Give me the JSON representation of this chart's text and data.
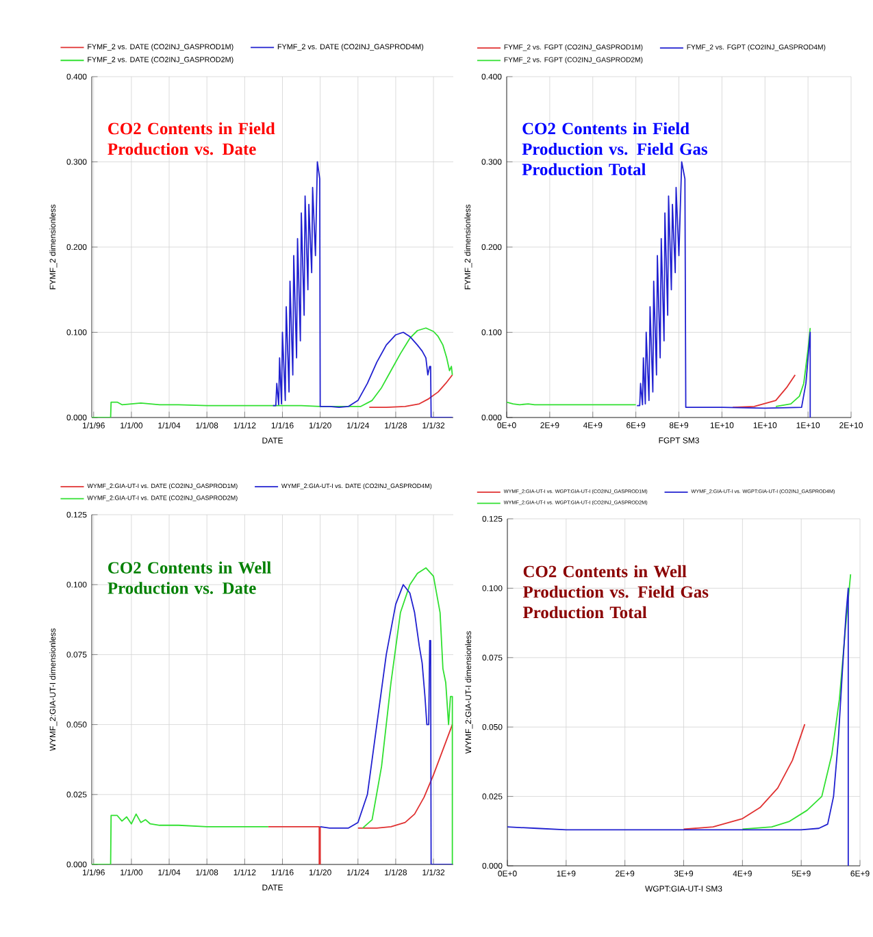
{
  "chart_data": [
    {
      "type": "line",
      "title": "CO2 Contents in Field Production vs. Date",
      "xlabel": "DATE",
      "ylabel": "FYMF_2   dimensionless",
      "legend": "top",
      "grid": true,
      "marker": "none",
      "line_style": "solid",
      "xlim": [
        "1995-10-20",
        "2034-02-06"
      ],
      "ylim": [
        0,
        0.4
      ],
      "xticks": [
        {
          "value": "1996-01-01",
          "label": "1/1/96"
        },
        {
          "value": "2000-01-01",
          "label": "1/1/00"
        },
        {
          "value": "2004-01-01",
          "label": "1/1/04"
        },
        {
          "value": "2008-01-01",
          "label": "1/1/08"
        },
        {
          "value": "2012-01-01",
          "label": "1/1/12"
        },
        {
          "value": "2016-01-01",
          "label": "1/1/16"
        },
        {
          "value": "2020-01-01",
          "label": "1/1/20"
        },
        {
          "value": "2024-01-01",
          "label": "1/1/24"
        },
        {
          "value": "2028-01-01",
          "label": "1/1/28"
        },
        {
          "value": "2032-01-01",
          "label": "1/1/32"
        }
      ],
      "yticks": [
        {
          "value": 0,
          "label": "0.000"
        },
        {
          "value": 0.1,
          "label": "0.100"
        },
        {
          "value": 0.2,
          "label": "0.200"
        },
        {
          "value": 0.3,
          "label": "0.300"
        },
        {
          "value": 0.4,
          "label": "0.400"
        }
      ],
      "series": [
        {
          "name": "FYMF_2  vs.  DATE (CO2INJ_GASPROD1M)",
          "color": "#e03030",
          "x": [
            "2025-03-14",
            "2027-01-01",
            "2029-01-01",
            "2030-07-02",
            "2031-07-02",
            "2032-07-02",
            "2033-04-20",
            "2034-01-01"
          ],
          "values": [
            0.012,
            0.012,
            0.013,
            0.016,
            0.022,
            0.03,
            0.04,
            0.05
          ]
        },
        {
          "name": "FYMF_2  vs.  DATE (CO2INJ_GASPROD2M)",
          "color": "#30e030",
          "x": [
            "1995-10-20",
            "1997-10-20",
            "1997-11-07",
            "1998-07-02",
            "1999-01-01",
            "2000-01-01",
            "2001-01-01",
            "2002-01-01",
            "2003-01-01",
            "2005-01-01",
            "2008-01-01",
            "2011-01-01",
            "2014-01-01",
            "2016-01-01",
            "2018-01-01",
            "2020-01-01",
            "2022-01-01",
            "2024-04-20",
            "2025-07-02",
            "2026-07-02",
            "2027-07-02",
            "2028-07-02",
            "2029-07-02",
            "2030-04-20",
            "2031-03-14",
            "2032-01-01",
            "2032-07-02",
            "2033-01-01",
            "2033-05-27",
            "2033-09-13",
            "2033-11-25",
            "2034-01-01"
          ],
          "values": [
            0,
            0,
            0.018,
            0.018,
            0.015,
            0.016,
            0.017,
            0.016,
            0.015,
            0.015,
            0.014,
            0.014,
            0.014,
            0.014,
            0.014,
            0.013,
            0.013,
            0.013,
            0.02,
            0.035,
            0.055,
            0.075,
            0.093,
            0.102,
            0.105,
            0.101,
            0.095,
            0.085,
            0.07,
            0.055,
            0.06,
            0.05
          ]
        },
        {
          "name": "FYMF_2  vs.  DATE (CO2INJ_GASPROD4M)",
          "color": "#2020d0",
          "x": [
            "2015-01-01",
            "2015-04-20",
            "2015-05-27",
            "2015-08-08",
            "2015-09-13",
            "2015-11-25",
            "2016-01-01",
            "2016-04-20",
            "2016-05-27",
            "2016-09-13",
            "2016-10-20",
            "2017-02-06",
            "2017-03-14",
            "2017-07-02",
            "2017-08-08",
            "2017-11-25",
            "2018-01-01",
            "2018-04-20",
            "2018-05-27",
            "2018-09-13",
            "2018-10-20",
            "2019-02-06",
            "2019-03-14",
            "2019-07-02",
            "2019-09-13",
            "2019-12-14",
            "2020-01-01",
            "2021-01-01",
            "2022-01-01",
            "2023-01-01",
            "2024-01-01",
            "2025-01-01",
            "2026-01-01",
            "2027-01-01",
            "2028-01-01",
            "2028-10-20",
            "2029-07-02",
            "2030-04-20",
            "2030-10-20",
            "2031-03-14",
            "2031-05-27",
            "2031-08-08",
            "2031-09-13",
            "2031-10-02",
            "2034-01-01"
          ],
          "values": [
            0.014,
            0.014,
            0.04,
            0.015,
            0.07,
            0.016,
            0.1,
            0.02,
            0.13,
            0.03,
            0.16,
            0.05,
            0.19,
            0.07,
            0.21,
            0.09,
            0.24,
            0.12,
            0.26,
            0.15,
            0.25,
            0.17,
            0.27,
            0.19,
            0.3,
            0.28,
            0.013,
            0.013,
            0.012,
            0.013,
            0.02,
            0.04,
            0.065,
            0.085,
            0.097,
            0.1,
            0.095,
            0.085,
            0.078,
            0.07,
            0.05,
            0.06,
            0.06,
            0,
            0
          ]
        }
      ]
    },
    {
      "type": "line",
      "title": "CO2 Contents in Field Production vs. Field Gas Production Total",
      "xlabel": "FGPT   SM3",
      "ylabel": "FYMF_2   dimensionless",
      "legend": "top",
      "grid": true,
      "marker": "none",
      "line_style": "solid",
      "xlim": [
        0,
        16000000000.0
      ],
      "ylim": [
        0,
        0.4
      ],
      "xticks": [
        {
          "value": 0,
          "label": "0E+0"
        },
        {
          "value": 2000000000.0,
          "label": "2E+9"
        },
        {
          "value": 4000000000.0,
          "label": "4E+9"
        },
        {
          "value": 6000000000.0,
          "label": "6E+9"
        },
        {
          "value": 8000000000.0,
          "label": "8E+9"
        },
        {
          "value": 10000000000.0,
          "label": "1E+10"
        },
        {
          "value": 12000000000.0,
          "label": "1E+10"
        },
        {
          "value": 14000000000.0,
          "label": "1E+10"
        },
        {
          "value": 16000000000.0,
          "label": "2E+10"
        }
      ],
      "yticks": [
        {
          "value": 0,
          "label": "0.000"
        },
        {
          "value": 0.1,
          "label": "0.100"
        },
        {
          "value": 0.2,
          "label": "0.200"
        },
        {
          "value": 0.3,
          "label": "0.300"
        },
        {
          "value": 0.4,
          "label": "0.400"
        }
      ],
      "series": [
        {
          "name": "FYMF_2  vs.  FGPT (CO2INJ_GASPROD1M)",
          "color": "#e03030",
          "x": [
            10500000000.0,
            11500000000.0,
            12500000000.0,
            13000000000.0,
            13400000000.0
          ],
          "values": [
            0.012,
            0.013,
            0.02,
            0.035,
            0.05
          ]
        },
        {
          "name": "FYMF_2  vs.  FGPT (CO2INJ_GASPROD2M)",
          "color": "#30e030",
          "x": [
            0,
            300000000.0,
            600000000.0,
            1000000000.0,
            1300000000.0,
            2000000000.0,
            3000000000.0,
            4000000000.0,
            5000000000.0,
            6000000000.0,
            7000000000.0,
            12500000000.0,
            13200000000.0,
            13600000000.0,
            13800000000.0,
            14000000000.0,
            14100000000.0
          ],
          "values": [
            0.018,
            0.016,
            0.015,
            0.016,
            0.015,
            0.015,
            0.015,
            0.015,
            0.015,
            0.015,
            null,
            0.013,
            0.016,
            0.025,
            0.04,
            0.08,
            0.105
          ]
        },
        {
          "name": "FYMF_2  vs.  FGPT (CO2INJ_GASPROD4M)",
          "color": "#2020d0",
          "x": [
            6050000000.0,
            6180000000.0,
            6220000000.0,
            6310000000.0,
            6350000000.0,
            6440000000.0,
            6480000000.0,
            6610000000.0,
            6660000000.0,
            6790000000.0,
            6830000000.0,
            6960000000.0,
            7000000000.0,
            7130000000.0,
            7180000000.0,
            7310000000.0,
            7350000000.0,
            7480000000.0,
            7520000000.0,
            7650000000.0,
            7700000000.0,
            7830000000.0,
            7870000000.0,
            8000000000.0,
            8130000000.0,
            8280000000.0,
            8320000000.0,
            10000000000.0,
            12000000000.0,
            13700000000.0,
            13900000000.0,
            14100000000.0,
            14100000000.0
          ],
          "values": [
            0.014,
            0.014,
            0.04,
            0.015,
            0.07,
            0.016,
            0.1,
            0.02,
            0.13,
            0.03,
            0.16,
            0.05,
            0.19,
            0.07,
            0.21,
            0.09,
            0.24,
            0.12,
            0.26,
            0.15,
            0.25,
            0.17,
            0.27,
            0.19,
            0.3,
            0.28,
            0.012,
            0.012,
            0.011,
            0.012,
            0.04,
            0.1,
            0
          ]
        }
      ]
    },
    {
      "type": "line",
      "title": "CO2 Contents in Well Production vs. Date",
      "xlabel": "DATE",
      "ylabel": "WYMF_2:GIA-UT-I   dimensionless",
      "legend": "top",
      "grid": true,
      "marker": "none",
      "line_style": "solid",
      "xlim": [
        "1995-10-20",
        "2034-02-06"
      ],
      "ylim": [
        0,
        0.125
      ],
      "xticks": [
        {
          "value": "1996-01-01",
          "label": "1/1/96"
        },
        {
          "value": "2000-01-01",
          "label": "1/1/00"
        },
        {
          "value": "2004-01-01",
          "label": "1/1/04"
        },
        {
          "value": "2008-01-01",
          "label": "1/1/08"
        },
        {
          "value": "2012-01-01",
          "label": "1/1/12"
        },
        {
          "value": "2016-01-01",
          "label": "1/1/16"
        },
        {
          "value": "2020-01-01",
          "label": "1/1/20"
        },
        {
          "value": "2024-01-01",
          "label": "1/1/24"
        },
        {
          "value": "2028-01-01",
          "label": "1/1/28"
        },
        {
          "value": "2032-01-01",
          "label": "1/1/32"
        }
      ],
      "yticks": [
        {
          "value": 0,
          "label": "0.000"
        },
        {
          "value": 0.025,
          "label": "0.025"
        },
        {
          "value": 0.05,
          "label": "0.050"
        },
        {
          "value": 0.075,
          "label": "0.075"
        },
        {
          "value": 0.1,
          "label": "0.100"
        },
        {
          "value": 0.125,
          "label": "0.125"
        }
      ],
      "series": [
        {
          "name": "WYMF_2:GIA-UT-I vs. DATE (CO2INJ_GASPROD1M)",
          "color": "#e03030",
          "x": [
            "2014-07-02",
            "2019-11-25",
            "2019-11-25",
            "2020-01-01",
            "2020-01-01",
            "2022-01-01",
            "2024-01-01",
            "2026-01-01",
            "2027-07-02",
            "2029-01-01",
            "2030-01-01",
            "2031-01-01",
            "2032-01-01",
            "2033-01-01",
            "2034-01-01"
          ],
          "values": [
            0.0135,
            0.0135,
            0,
            0,
            0.0135,
            null,
            0.013,
            0.013,
            0.0135,
            0.015,
            0.018,
            0.024,
            0.032,
            0.041,
            0.05
          ]
        },
        {
          "name": "WYMF_2:GIA-UT-I vs. DATE (CO2INJ_GASPROD2M)",
          "color": "#30e030",
          "x": [
            "1995-10-20",
            "1997-10-20",
            "1997-11-07",
            "1998-07-02",
            "1999-01-01",
            "1999-07-02",
            "2000-01-01",
            "2000-07-02",
            "2001-01-01",
            "2001-07-02",
            "2002-01-01",
            "2003-01-01",
            "2005-01-01",
            "2008-01-01",
            "2011-01-01",
            "2014-07-02",
            "2019-01-01",
            "2024-07-02",
            "2025-07-02",
            "2026-07-02",
            "2027-07-02",
            "2028-07-02",
            "2029-07-02",
            "2030-04-20",
            "2031-03-14",
            "2032-01-01",
            "2032-09-13",
            "2033-01-01",
            "2033-04-20",
            "2033-08-08",
            "2033-10-20",
            "2034-01-01",
            "2034-01-01"
          ],
          "values": [
            0,
            0,
            0.0175,
            0.0175,
            0.0155,
            0.017,
            0.0145,
            0.018,
            0.015,
            0.016,
            0.0145,
            0.014,
            0.014,
            0.0135,
            0.0135,
            0.0135,
            null,
            0.013,
            0.016,
            0.035,
            0.065,
            0.09,
            0.1,
            0.104,
            0.106,
            0.103,
            0.09,
            0.07,
            0.065,
            0.05,
            0.06,
            0.06,
            0
          ]
        },
        {
          "name": "WYMF_2:GIA-UT-I vs. DATE (CO2INJ_GASPROD4M)",
          "color": "#2020d0",
          "x": [
            "2020-01-01",
            "2021-01-01",
            "2022-01-01",
            "2023-01-01",
            "2024-01-01",
            "2025-01-01",
            "2026-01-01",
            "2027-01-01",
            "2028-01-01",
            "2028-10-20",
            "2029-07-02",
            "2030-01-01",
            "2030-07-02",
            "2030-10-20",
            "2031-02-06",
            "2031-04-20",
            "2031-07-02",
            "2031-08-08",
            "2031-09-13",
            "2031-10-02",
            "2034-01-01"
          ],
          "values": [
            0.0135,
            0.013,
            0.013,
            0.013,
            0.015,
            0.025,
            0.05,
            0.075,
            0.093,
            0.1,
            0.097,
            0.09,
            0.078,
            0.072,
            0.06,
            0.05,
            0.05,
            0.08,
            0.08,
            0,
            0
          ]
        }
      ]
    },
    {
      "type": "line",
      "title": "CO2 Contents in Well Production vs. Field Gas Production Total",
      "xlabel": "WGPT:GIA-UT-I   SM3",
      "ylabel": "WYMF_2:GIA-UT-I   dimensionless",
      "legend": "top",
      "grid": true,
      "marker": "none",
      "line_style": "solid",
      "xlim": [
        0,
        6000000000.0
      ],
      "ylim": [
        0,
        0.125
      ],
      "xticks": [
        {
          "value": 0,
          "label": "0E+0"
        },
        {
          "value": 1000000000.0,
          "label": "1E+9"
        },
        {
          "value": 2000000000.0,
          "label": "2E+9"
        },
        {
          "value": 3000000000.0,
          "label": "3E+9"
        },
        {
          "value": 4000000000.0,
          "label": "4E+9"
        },
        {
          "value": 5000000000.0,
          "label": "5E+9"
        },
        {
          "value": 6000000000.0,
          "label": "6E+9"
        }
      ],
      "yticks": [
        {
          "value": 0,
          "label": "0.000"
        },
        {
          "value": 0.025,
          "label": "0.025"
        },
        {
          "value": 0.05,
          "label": "0.050"
        },
        {
          "value": 0.075,
          "label": "0.075"
        },
        {
          "value": 0.1,
          "label": "0.100"
        },
        {
          "value": 0.125,
          "label": "0.125"
        }
      ],
      "series": [
        {
          "name": "WYMF_2:GIA-UT-I vs. WGPT:GIA-UT-I (CO2INJ_GASPROD1M)",
          "color": "#e03030",
          "x": [
            3000000000.0,
            3500000000.0,
            4000000000.0,
            4300000000.0,
            4600000000.0,
            4850000000.0,
            5060000000.0
          ],
          "values": [
            0.0132,
            0.014,
            0.017,
            0.021,
            0.028,
            0.038,
            0.051
          ]
        },
        {
          "name": "WYMF_2:GIA-UT-I vs. WGPT:GIA-UT-I (CO2INJ_GASPROD2M)",
          "color": "#30e030",
          "x": [
            4000000000.0,
            4500000000.0,
            4800000000.0,
            5100000000.0,
            5350000000.0,
            5520000000.0,
            5650000000.0,
            5750000000.0,
            5840000000.0
          ],
          "values": [
            0.0132,
            0.014,
            0.016,
            0.02,
            0.025,
            0.04,
            0.06,
            0.085,
            0.105
          ]
        },
        {
          "name": "WYMF_2:GIA-UT-I vs. WGPT:GIA-UT-I (CO2INJ_GASPROD4M)",
          "color": "#2020d0",
          "x": [
            0,
            500000000.0,
            1000000000.0,
            3000000000.0,
            5000000000.0,
            5300000000.0,
            5450000000.0,
            5550000000.0,
            5630000000.0,
            5700000000.0,
            5760000000.0,
            5800000000.0,
            5800000000.0
          ],
          "values": [
            0.014,
            0.0135,
            0.013,
            0.013,
            0.013,
            0.0135,
            0.015,
            0.025,
            0.045,
            0.07,
            0.09,
            0.1,
            0
          ]
        }
      ]
    }
  ]
}
